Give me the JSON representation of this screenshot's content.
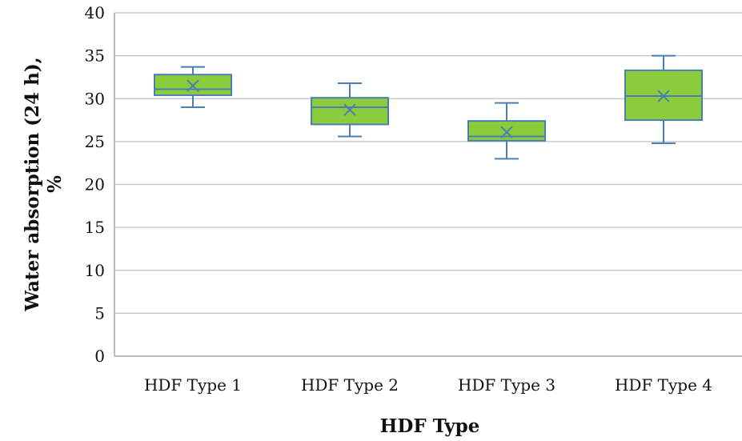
{
  "chart_data": {
    "type": "box",
    "xlabel": "HDF Type",
    "ylabel_lines": [
      "Water absorption (24 h),",
      "%"
    ],
    "categories": [
      "HDF Type 1",
      "HDF Type 2",
      "HDF Type 3",
      "HDF Type 4"
    ],
    "boxes": [
      {
        "category": "HDF Type 1",
        "min": 29.0,
        "q1": 30.4,
        "median": 31.1,
        "mean": 31.5,
        "q3": 32.8,
        "max": 33.7
      },
      {
        "category": "HDF Type 2",
        "min": 25.6,
        "q1": 27.0,
        "median": 29.0,
        "mean": 28.7,
        "q3": 30.1,
        "max": 31.8
      },
      {
        "category": "HDF Type 3",
        "min": 23.0,
        "q1": 25.1,
        "median": 25.6,
        "mean": 26.1,
        "q3": 27.4,
        "max": 29.5
      },
      {
        "category": "HDF Type 4",
        "min": 24.8,
        "q1": 27.5,
        "median": 30.3,
        "mean": 30.3,
        "q3": 33.3,
        "max": 35.0
      }
    ],
    "ylim": [
      0,
      40
    ],
    "yticks": [
      0,
      5,
      10,
      15,
      20,
      25,
      30,
      35,
      40
    ],
    "grid": true,
    "legend": "none",
    "colors": {
      "box_fill": "#8ccc3c",
      "box_stroke": "#4a7fb0",
      "grid": "#bfbfbf",
      "axis": "#a6a6a6"
    }
  }
}
